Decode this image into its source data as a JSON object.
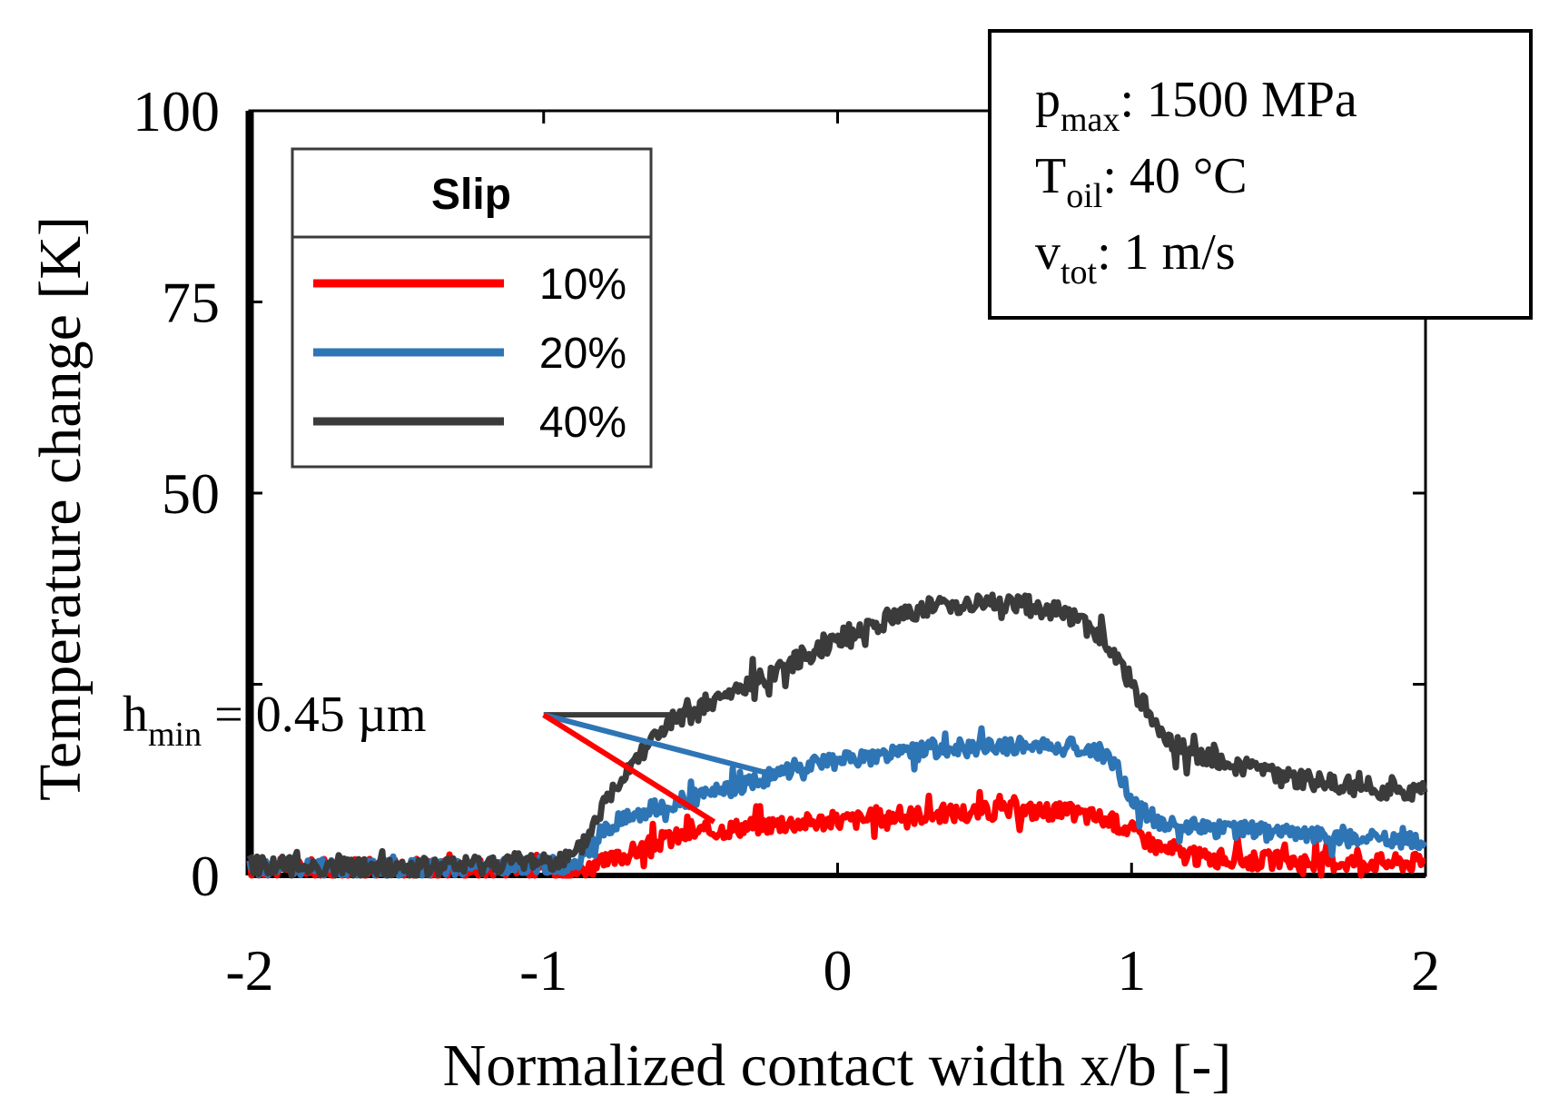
{
  "chart_data": {
    "type": "line",
    "xlabel": "Normalized contact width x/b [-]",
    "ylabel": "Temperature change [K]",
    "xlim": [
      -2,
      2
    ],
    "ylim": [
      0,
      100
    ],
    "xticks": [
      -2,
      -1,
      0,
      1,
      2
    ],
    "xtick_labels": [
      "-2",
      "-1",
      "0",
      "1",
      "2"
    ],
    "yticks": [
      0,
      25,
      50,
      75,
      100
    ],
    "ytick_labels": [
      "0",
      "",
      "50",
      "75",
      "100"
    ],
    "legend": {
      "title": "Slip",
      "position": "top-left",
      "entries": [
        "10%",
        "20%",
        "40%"
      ]
    },
    "info_box": {
      "lines": [
        {
          "symbol": "p",
          "sub": "max",
          "rest": ": 1500 MPa"
        },
        {
          "symbol": "T",
          "sub": "oil",
          "rest": ": 40 °C"
        },
        {
          "symbol": "v",
          "sub": "tot",
          "rest": ": 1 m/s"
        }
      ]
    },
    "annotation": {
      "symbol": "h",
      "sub": "min",
      "rest": " = 0.45 µm",
      "anchor_x": -1.0,
      "anchor_y": 21,
      "points_to": [
        {
          "series": "40%",
          "x": -0.48,
          "y": 21
        },
        {
          "series": "20%",
          "x": -0.2,
          "y": 13
        },
        {
          "series": "10%",
          "x": -0.42,
          "y": 7
        }
      ]
    },
    "series": [
      {
        "name": "10%",
        "color": "#ff0000",
        "x": [
          -2.0,
          -1.8,
          -1.6,
          -1.4,
          -1.2,
          -1.0,
          -0.9,
          -0.8,
          -0.7,
          -0.6,
          -0.5,
          -0.4,
          -0.3,
          -0.2,
          -0.1,
          0.0,
          0.1,
          0.2,
          0.3,
          0.4,
          0.5,
          0.6,
          0.7,
          0.8,
          0.9,
          1.0,
          1.1,
          1.2,
          1.3,
          1.4,
          1.5,
          1.6,
          1.7,
          1.8,
          1.9,
          2.0
        ],
        "values": [
          1.0,
          1.0,
          1.0,
          1.0,
          1.0,
          1.0,
          0.5,
          1.5,
          3.0,
          4.5,
          5.5,
          6.0,
          6.5,
          6.8,
          7.0,
          7.2,
          7.4,
          7.8,
          8.0,
          8.2,
          8.4,
          8.5,
          8.5,
          8.2,
          7.5,
          6.0,
          3.5,
          2.5,
          2.2,
          2.0,
          2.0,
          1.8,
          1.8,
          1.8,
          1.7,
          1.8
        ]
      },
      {
        "name": "20%",
        "color": "#2e75b6",
        "x": [
          -2.0,
          -1.8,
          -1.6,
          -1.4,
          -1.2,
          -1.0,
          -0.9,
          -0.85,
          -0.8,
          -0.7,
          -0.6,
          -0.5,
          -0.4,
          -0.3,
          -0.2,
          -0.1,
          0.0,
          0.1,
          0.2,
          0.3,
          0.4,
          0.5,
          0.6,
          0.7,
          0.8,
          0.9,
          0.95,
          1.0,
          1.05,
          1.1,
          1.2,
          1.3,
          1.4,
          1.5,
          1.6,
          1.7,
          1.8,
          1.9,
          2.0
        ],
        "values": [
          1.0,
          1.0,
          1.0,
          1.0,
          1.2,
          1.5,
          1.0,
          3.0,
          6.0,
          8.0,
          9.0,
          10.0,
          11.0,
          12.0,
          13.5,
          14.5,
          15.0,
          15.5,
          16.0,
          16.5,
          16.5,
          16.8,
          17.0,
          17.0,
          16.8,
          16.0,
          14.0,
          10.0,
          8.0,
          7.0,
          6.5,
          6.0,
          6.0,
          5.5,
          5.5,
          5.0,
          5.0,
          4.8,
          4.5
        ]
      },
      {
        "name": "40%",
        "color": "#3b3b3b",
        "x": [
          -2.0,
          -1.8,
          -1.6,
          -1.4,
          -1.2,
          -1.0,
          -0.9,
          -0.85,
          -0.8,
          -0.7,
          -0.6,
          -0.5,
          -0.4,
          -0.3,
          -0.2,
          -0.1,
          0.0,
          0.1,
          0.2,
          0.3,
          0.4,
          0.5,
          0.6,
          0.7,
          0.8,
          0.9,
          0.95,
          1.0,
          1.05,
          1.1,
          1.2,
          1.3,
          1.4,
          1.5,
          1.6,
          1.7,
          1.8,
          1.9,
          2.0
        ],
        "values": [
          1.5,
          1.2,
          1.0,
          1.0,
          1.5,
          2.0,
          2.0,
          5.0,
          9.0,
          15.0,
          19.0,
          21.0,
          23.0,
          25.0,
          27.0,
          29.0,
          31.0,
          32.5,
          34.0,
          35.0,
          35.5,
          35.5,
          35.5,
          35.0,
          34.0,
          31.0,
          28.0,
          25.0,
          22.0,
          18.0,
          16.0,
          15.0,
          14.0,
          13.0,
          12.5,
          12.0,
          11.5,
          11.0,
          11.0
        ]
      }
    ]
  }
}
